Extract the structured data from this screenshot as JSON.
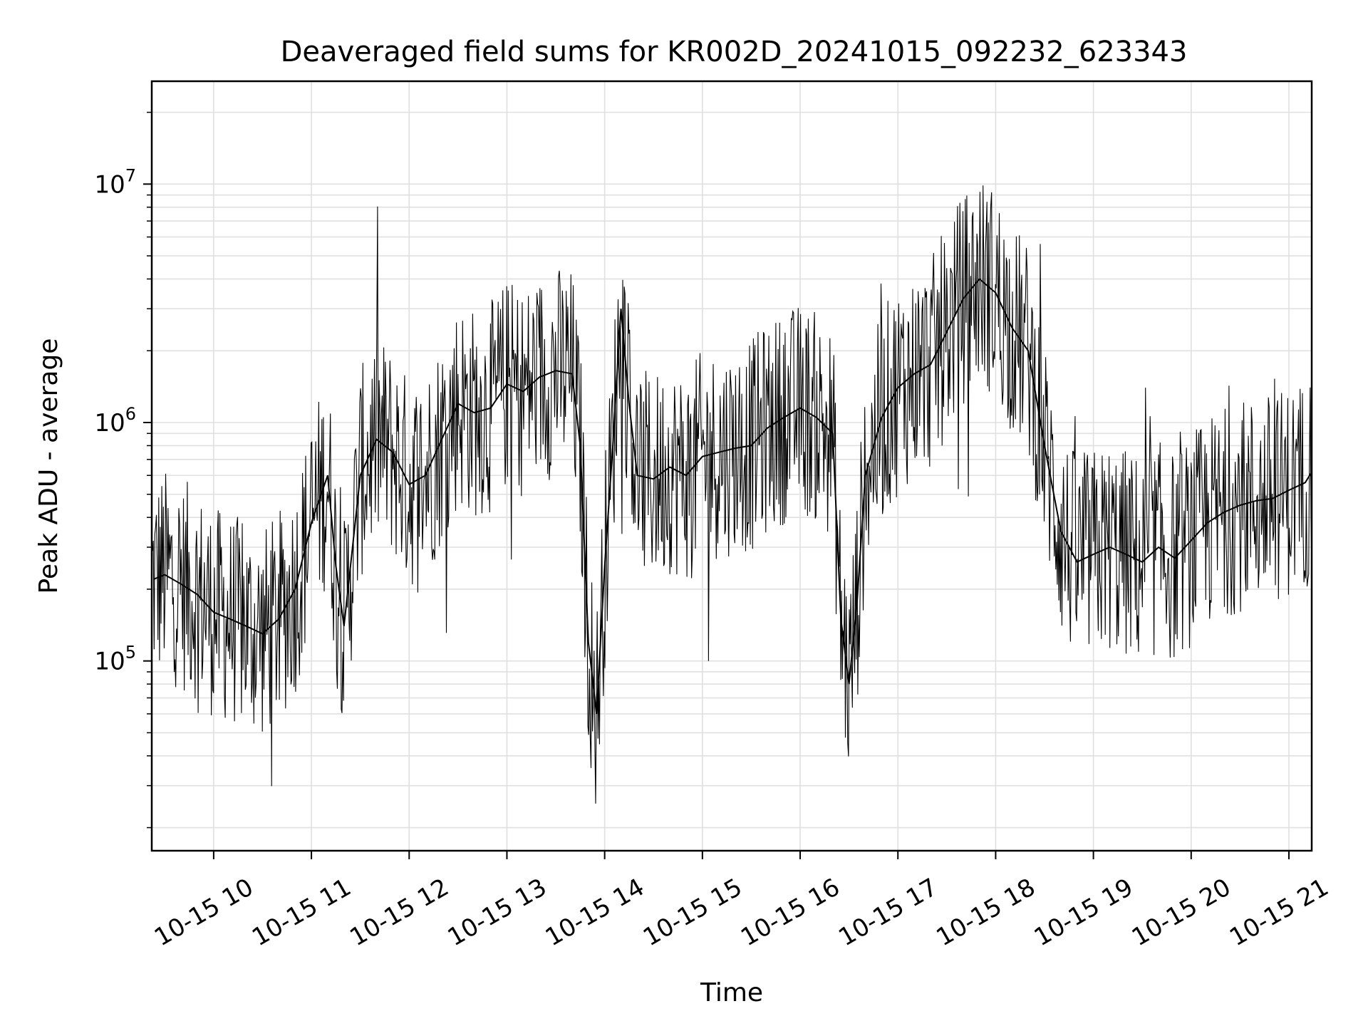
{
  "chart_data": {
    "type": "line",
    "title": "Deaveraged field sums for KR002D_20241015_092232_623343",
    "xlabel": "Time",
    "ylabel": "Peak ADU - average",
    "y_scale": "log",
    "ylim": [
      16000,
      27000000
    ],
    "xlim": [
      "2024-10-15 09:22",
      "2024-10-15 21:14"
    ],
    "grid": true,
    "line_color": "#000000",
    "grid_color": "#e0e0e0",
    "x_ticks": [
      {
        "value": "2024-10-15 10:00",
        "label": "10-15 10"
      },
      {
        "value": "2024-10-15 11:00",
        "label": "10-15 11"
      },
      {
        "value": "2024-10-15 12:00",
        "label": "10-15 12"
      },
      {
        "value": "2024-10-15 13:00",
        "label": "10-15 13"
      },
      {
        "value": "2024-10-15 14:00",
        "label": "10-15 14"
      },
      {
        "value": "2024-10-15 15:00",
        "label": "10-15 15"
      },
      {
        "value": "2024-10-15 16:00",
        "label": "10-15 16"
      },
      {
        "value": "2024-10-15 17:00",
        "label": "10-15 17"
      },
      {
        "value": "2024-10-15 18:00",
        "label": "10-15 18"
      },
      {
        "value": "2024-10-15 19:00",
        "label": "10-15 19"
      },
      {
        "value": "2024-10-15 20:00",
        "label": "10-15 20"
      },
      {
        "value": "2024-10-15 21:00",
        "label": "10-15 21"
      }
    ],
    "y_ticks": [
      {
        "value": 100000,
        "base": "10",
        "exp": "5"
      },
      {
        "value": 1000000,
        "base": "10",
        "exp": "6"
      },
      {
        "value": 10000000,
        "base": "10",
        "exp": "7"
      }
    ],
    "series": [
      {
        "x": [
          "2024-10-15 09:23",
          "2024-10-15 09:30",
          "2024-10-15 09:40",
          "2024-10-15 09:50",
          "2024-10-15 10:00",
          "2024-10-15 10:10",
          "2024-10-15 10:20",
          "2024-10-15 10:30",
          "2024-10-15 10:40",
          "2024-10-15 10:50",
          "2024-10-15 11:00",
          "2024-10-15 11:10",
          "2024-10-15 11:15",
          "2024-10-15 11:20",
          "2024-10-15 11:30",
          "2024-10-15 11:40",
          "2024-10-15 11:50",
          "2024-10-15 12:00",
          "2024-10-15 12:10",
          "2024-10-15 12:20",
          "2024-10-15 12:30",
          "2024-10-15 12:40",
          "2024-10-15 12:50",
          "2024-10-15 13:00",
          "2024-10-15 13:10",
          "2024-10-15 13:20",
          "2024-10-15 13:30",
          "2024-10-15 13:40",
          "2024-10-15 13:45",
          "2024-10-15 13:50",
          "2024-10-15 13:55",
          "2024-10-15 14:00",
          "2024-10-15 14:05",
          "2024-10-15 14:10",
          "2024-10-15 14:15",
          "2024-10-15 14:20",
          "2024-10-15 14:30",
          "2024-10-15 14:40",
          "2024-10-15 14:50",
          "2024-10-15 15:00",
          "2024-10-15 15:10",
          "2024-10-15 15:20",
          "2024-10-15 15:30",
          "2024-10-15 15:40",
          "2024-10-15 15:50",
          "2024-10-15 16:00",
          "2024-10-15 16:10",
          "2024-10-15 16:20",
          "2024-10-15 16:25",
          "2024-10-15 16:30",
          "2024-10-15 16:35",
          "2024-10-15 16:40",
          "2024-10-15 16:50",
          "2024-10-15 17:00",
          "2024-10-15 17:10",
          "2024-10-15 17:20",
          "2024-10-15 17:30",
          "2024-10-15 17:40",
          "2024-10-15 17:50",
          "2024-10-15 18:00",
          "2024-10-15 18:10",
          "2024-10-15 18:20",
          "2024-10-15 18:30",
          "2024-10-15 18:40",
          "2024-10-15 18:50",
          "2024-10-15 19:00",
          "2024-10-15 19:10",
          "2024-10-15 19:20",
          "2024-10-15 19:30",
          "2024-10-15 19:40",
          "2024-10-15 19:50",
          "2024-10-15 20:00",
          "2024-10-15 20:10",
          "2024-10-15 20:20",
          "2024-10-15 20:30",
          "2024-10-15 20:40",
          "2024-10-15 20:50",
          "2024-10-15 21:00",
          "2024-10-15 21:10",
          "2024-10-15 21:14"
        ],
        "y": [
          220000,
          230000,
          210000,
          190000,
          160000,
          150000,
          140000,
          130000,
          150000,
          200000,
          380000,
          600000,
          250000,
          140000,
          600000,
          850000,
          750000,
          550000,
          600000,
          850000,
          1200000,
          1100000,
          1150000,
          1450000,
          1350000,
          1550000,
          1650000,
          1600000,
          800000,
          120000,
          60000,
          250000,
          800000,
          3000000,
          1200000,
          600000,
          580000,
          650000,
          600000,
          720000,
          750000,
          780000,
          800000,
          950000,
          1050000,
          1150000,
          1050000,
          900000,
          150000,
          80000,
          180000,
          600000,
          1050000,
          1400000,
          1600000,
          1750000,
          2400000,
          3300000,
          4000000,
          3500000,
          2500000,
          2000000,
          800000,
          350000,
          260000,
          280000,
          300000,
          280000,
          260000,
          300000,
          270000,
          320000,
          380000,
          420000,
          450000,
          470000,
          480000,
          520000,
          560000,
          620000
        ]
      }
    ]
  }
}
